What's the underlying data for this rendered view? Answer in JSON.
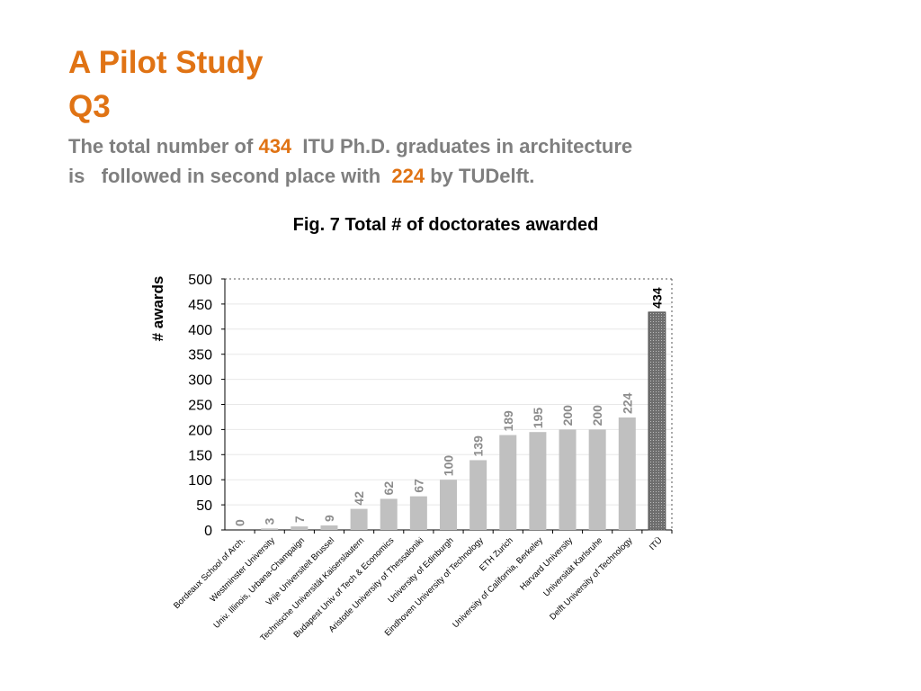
{
  "header": {
    "title_line1": "A Pilot Study",
    "title_line2": "Q3",
    "subtitle_line1_part1": "The total number of ",
    "subtitle_line1_highlight": "434",
    "subtitle_line1_part2": "  ITU Ph.D. graduates in architecture",
    "subtitle_line2_part1": "is   followed in second place with  ",
    "subtitle_line2_highlight": "224",
    "subtitle_line2_part2": " by TUDelft."
  },
  "colors": {
    "accent": "#E07314",
    "subtitle_gray": "#7F7F7F",
    "bar_gray": "#C0C0C0",
    "highlight_bar": "#6E6E6E",
    "label_gray": "#8C8C8C",
    "text": "#000000"
  },
  "chart_data": {
    "type": "bar",
    "title": "Fig. 7  Total # of doctorates awarded",
    "xlabel": "",
    "ylabel": "# awards",
    "ylim": [
      0,
      500
    ],
    "yticks": [
      0,
      50,
      100,
      150,
      200,
      250,
      300,
      350,
      400,
      450,
      500
    ],
    "grid": true,
    "categories": [
      "Bordeaux School of Arch.",
      "Westminster University",
      "Univ. Illinois, Urbana-Champaign",
      "Vrije Universiteit Brussel",
      "Technische Universität Kaiserslautern",
      "Budapest Univ of Tech & Economics",
      "Aristotle University of Thessaloniki",
      "University of Edinburgh",
      "Eindhoven University of Technology",
      "ETH Zurich",
      "University of California, Berkeley",
      "Harvard University",
      "Universität Karlsruhe",
      "Delft University of Technology",
      "ITÜ"
    ],
    "values": [
      0,
      3,
      7,
      9,
      42,
      62,
      67,
      100,
      139,
      189,
      195,
      200,
      200,
      224,
      434
    ],
    "highlight_index": 14
  }
}
